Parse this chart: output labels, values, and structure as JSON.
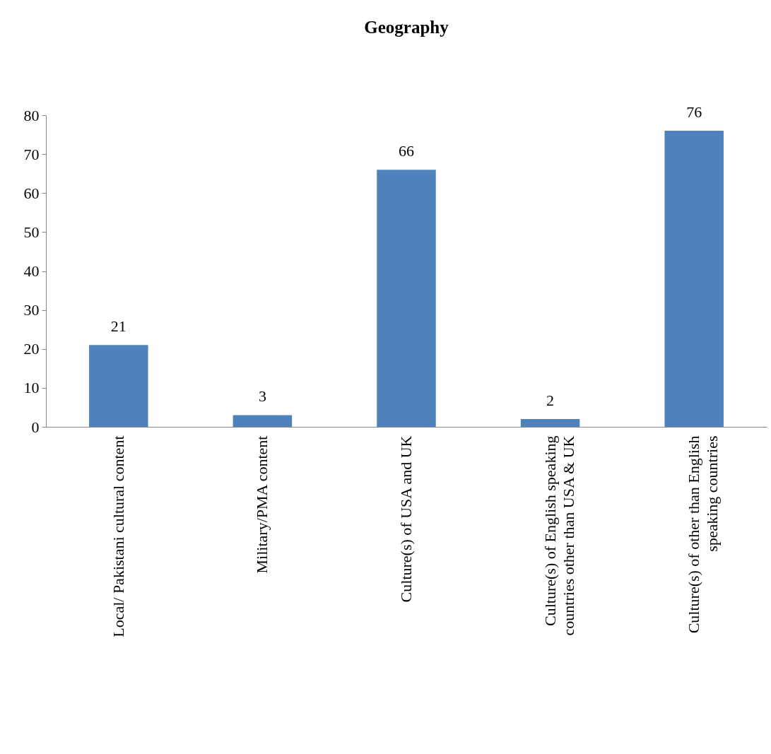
{
  "chart_data": {
    "type": "bar",
    "title": "Geography",
    "categories": [
      "Local/ Pakistani cultural content",
      "Military/PMA content",
      "Culture(s) of USA and UK",
      "Culture(s) of English speaking countries other than USA & UK",
      "Culture(s) of other than English speaking countries"
    ],
    "values": [
      21,
      3,
      66,
      2,
      76
    ],
    "color": "#4f81bd",
    "ylim": [
      0,
      80
    ],
    "yticks": [
      0,
      10,
      20,
      30,
      40,
      50,
      60,
      70,
      80
    ],
    "data_labels": true,
    "grid": false
  }
}
